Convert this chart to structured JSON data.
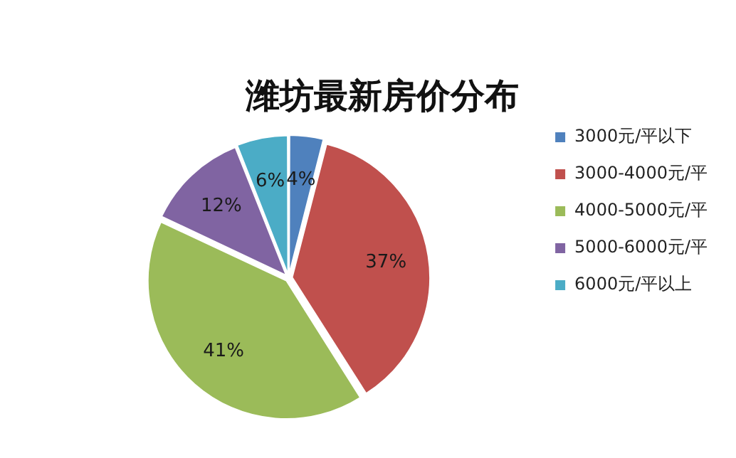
{
  "chart_data": {
    "type": "pie",
    "title": "潍坊最新房价分布",
    "categories": [
      "3000元/平以下",
      "3000-4000元/平",
      "4000-5000元/平",
      "5000-6000元/平",
      "6000元/平以上"
    ],
    "values": [
      4,
      37,
      41,
      12,
      6
    ],
    "value_labels": [
      "4%",
      "37%",
      "41%",
      "12%",
      "6%"
    ],
    "colors": [
      "#4f81bd",
      "#c0504d",
      "#9bbb59",
      "#8064a2",
      "#4bacc6"
    ],
    "legend": "right"
  }
}
